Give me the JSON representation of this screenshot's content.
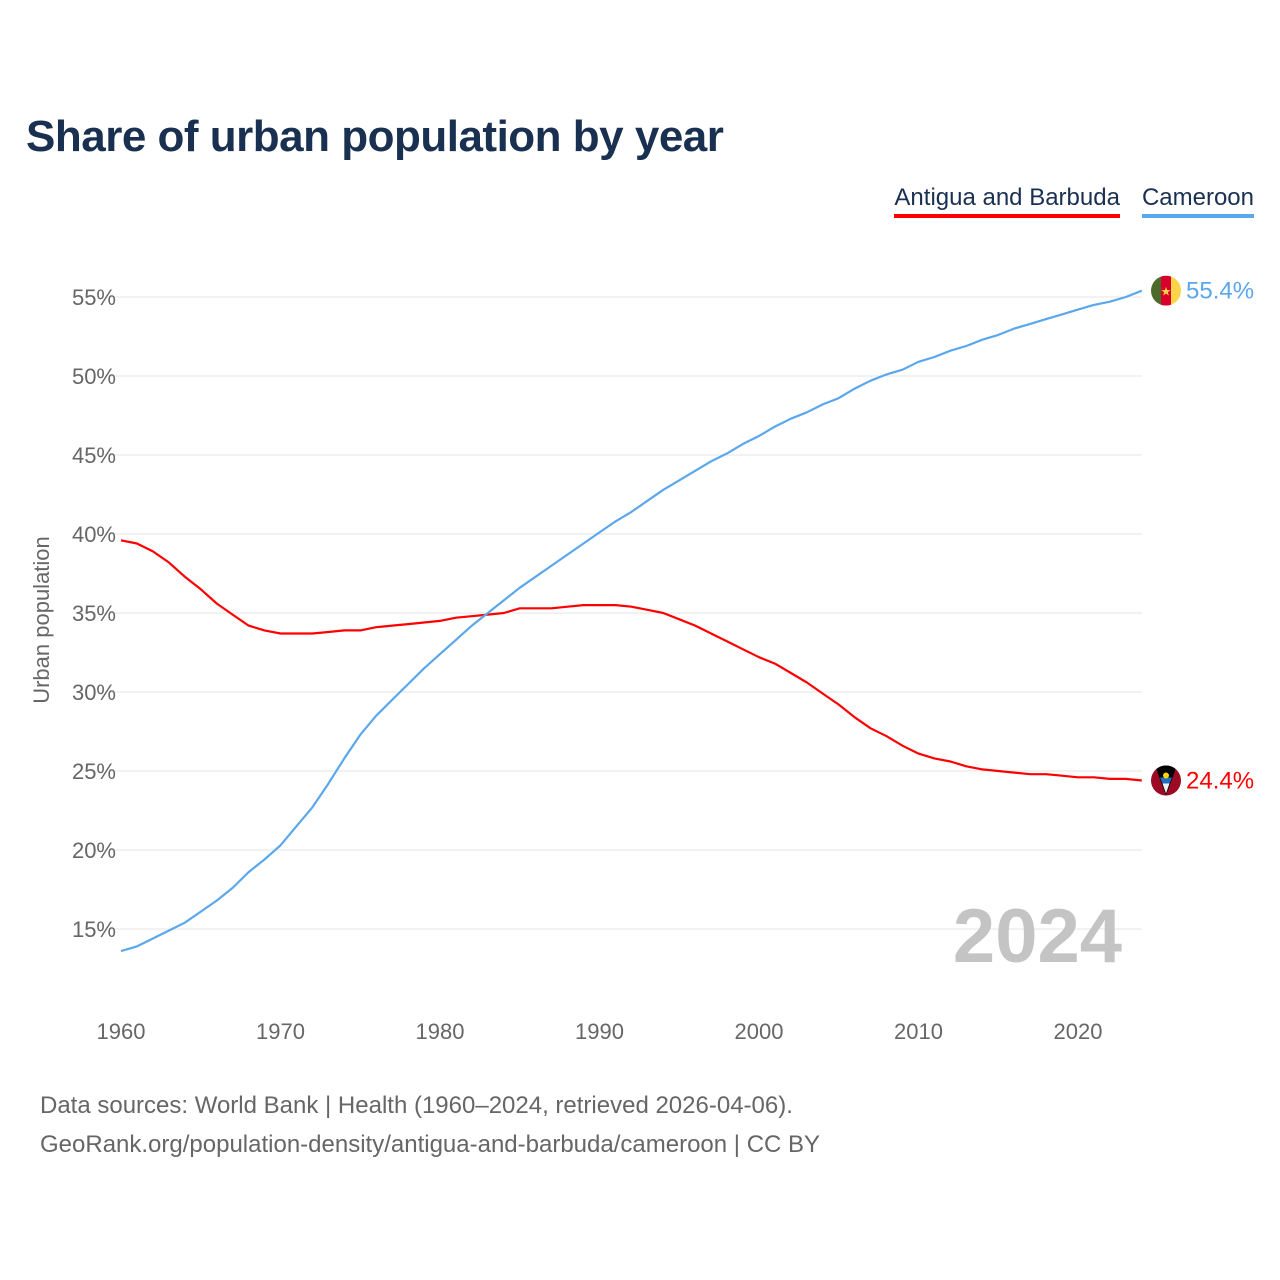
{
  "chart_data": {
    "type": "line",
    "title": "Share of urban population by year",
    "ylabel": "Urban population",
    "xlabel": "",
    "ylim": [
      10,
      57
    ],
    "xlim": [
      1960,
      2024
    ],
    "yticks": [
      "15%",
      "20%",
      "25%",
      "30%",
      "35%",
      "40%",
      "45%",
      "50%",
      "55%"
    ],
    "ytick_values": [
      15,
      20,
      25,
      30,
      35,
      40,
      45,
      50,
      55
    ],
    "xticks": [
      "1960",
      "1970",
      "1980",
      "1990",
      "2000",
      "2010",
      "2020"
    ],
    "xtick_values": [
      1960,
      1970,
      1980,
      1990,
      2000,
      2010,
      2020
    ],
    "grid": true,
    "legend_placement": "top-right",
    "year_watermark": "2024",
    "x": [
      1960,
      1961,
      1962,
      1963,
      1964,
      1965,
      1966,
      1967,
      1968,
      1969,
      1970,
      1971,
      1972,
      1973,
      1974,
      1975,
      1976,
      1977,
      1978,
      1979,
      1980,
      1981,
      1982,
      1983,
      1984,
      1985,
      1986,
      1987,
      1988,
      1989,
      1990,
      1991,
      1992,
      1993,
      1994,
      1995,
      1996,
      1997,
      1998,
      1999,
      2000,
      2001,
      2002,
      2003,
      2004,
      2005,
      2006,
      2007,
      2008,
      2009,
      2010,
      2011,
      2012,
      2013,
      2014,
      2015,
      2016,
      2017,
      2018,
      2019,
      2020,
      2021,
      2022,
      2023,
      2024
    ],
    "series": [
      {
        "name": "Antigua and Barbuda",
        "color": "#ff0000",
        "end_label": "24.4%",
        "values": [
          39.6,
          39.4,
          38.9,
          38.2,
          37.3,
          36.5,
          35.6,
          34.9,
          34.2,
          33.9,
          33.7,
          33.7,
          33.7,
          33.8,
          33.9,
          33.9,
          34.1,
          34.2,
          34.3,
          34.4,
          34.5,
          34.7,
          34.8,
          34.9,
          35.0,
          35.3,
          35.3,
          35.3,
          35.4,
          35.5,
          35.5,
          35.5,
          35.4,
          35.2,
          35.0,
          34.6,
          34.2,
          33.7,
          33.2,
          32.7,
          32.2,
          31.8,
          31.2,
          30.6,
          29.9,
          29.2,
          28.4,
          27.7,
          27.2,
          26.6,
          26.1,
          25.8,
          25.6,
          25.3,
          25.1,
          25.0,
          24.9,
          24.8,
          24.8,
          24.7,
          24.6,
          24.6,
          24.5,
          24.5,
          24.4
        ]
      },
      {
        "name": "Cameroon",
        "color": "#5ba7ec",
        "end_label": "55.4%",
        "values": [
          13.6,
          13.9,
          14.4,
          14.9,
          15.4,
          16.1,
          16.8,
          17.6,
          18.6,
          19.4,
          20.3,
          21.5,
          22.7,
          24.2,
          25.8,
          27.3,
          28.5,
          29.5,
          30.5,
          31.5,
          32.4,
          33.3,
          34.2,
          35.0,
          35.8,
          36.6,
          37.3,
          38.0,
          38.7,
          39.4,
          40.1,
          40.8,
          41.4,
          42.1,
          42.8,
          43.4,
          44.0,
          44.6,
          45.1,
          45.7,
          46.2,
          46.8,
          47.3,
          47.7,
          48.2,
          48.6,
          49.2,
          49.7,
          50.1,
          50.4,
          50.9,
          51.2,
          51.6,
          51.9,
          52.3,
          52.6,
          53.0,
          53.3,
          53.6,
          53.9,
          54.2,
          54.5,
          54.7,
          55.0,
          55.4
        ]
      }
    ]
  },
  "footer": {
    "line1": "Data sources: World Bank | Health (1960–2024, retrieved 2026-04-06).",
    "line2": "GeoRank.org/population-density/antigua-and-barbuda/cameroon | CC BY"
  }
}
